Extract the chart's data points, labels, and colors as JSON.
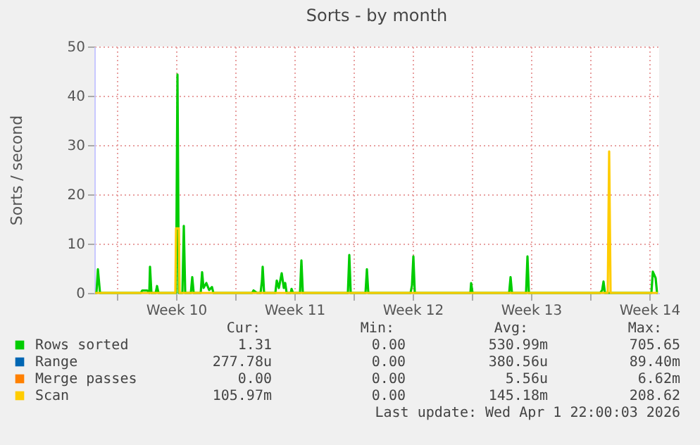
{
  "chart_data": {
    "type": "line",
    "title": "Sorts - by month",
    "ylabel": "Sorts / second",
    "xlim": [
      "2026-02-28T16:00",
      "2026-04-03T02:00"
    ],
    "xticks": [
      {
        "value": "2026-03-02",
        "label": null
      },
      {
        "value": "2026-03-05T12:00",
        "label": "Week 10"
      },
      {
        "value": "2026-03-09",
        "label": null
      },
      {
        "value": "2026-03-12T12:00",
        "label": "Week 11"
      },
      {
        "value": "2026-03-16",
        "label": null
      },
      {
        "value": "2026-03-19T12:00",
        "label": "Week 12"
      },
      {
        "value": "2026-03-23",
        "label": null
      },
      {
        "value": "2026-03-26T12:00",
        "label": "Week 13"
      },
      {
        "value": "2026-03-30",
        "label": null
      },
      {
        "value": "2026-04-02T12:00",
        "label": "Week 14"
      }
    ],
    "ylim": [
      0,
      50
    ],
    "yticks": [
      0,
      10,
      20,
      30,
      40,
      50
    ],
    "grid": true,
    "legend": "bottom",
    "marker": "none",
    "line_style": "solid",
    "series": [
      {
        "name": "Rows sorted",
        "color": "#00cc00",
        "x": [
          "2026-02-28T17:00",
          "2026-02-28T19:00",
          "2026-02-28T21:00",
          "2026-03-01T00:00",
          "2026-03-03T10:00",
          "2026-03-03T12:00",
          "2026-03-03T19:00",
          "2026-03-03T22:00",
          "2026-03-03T23:00",
          "2026-03-04T01:00",
          "2026-03-04T07:00",
          "2026-03-04T09:00",
          "2026-03-04T11:00",
          "2026-03-05T12:00",
          "2026-03-05T14:00",
          "2026-03-05T16:00",
          "2026-03-05T21:00",
          "2026-03-05T23:00",
          "2026-03-06T01:00",
          "2026-03-06T09:00",
          "2026-03-06T11:00",
          "2026-03-06T13:00",
          "2026-03-06T23:00",
          "2026-03-07T01:00",
          "2026-03-07T03:00",
          "2026-03-07T07:00",
          "2026-03-07T11:00",
          "2026-03-07T15:00",
          "2026-03-07T17:00",
          "2026-03-10T00:00",
          "2026-03-10T02:00",
          "2026-03-10T07:00",
          "2026-03-10T12:00",
          "2026-03-10T14:00",
          "2026-03-10T15:00",
          "2026-03-10T17:00",
          "2026-03-11T09:00",
          "2026-03-11T11:00",
          "2026-03-11T14:00",
          "2026-03-11T18:00",
          "2026-03-11T21:00",
          "2026-03-11T23:00",
          "2026-03-12T01:00",
          "2026-03-12T07:00",
          "2026-03-12T08:00",
          "2026-03-12T10:00",
          "2026-03-12T20:00",
          "2026-03-12T22:00",
          "2026-03-13T00:00",
          "2026-03-15T16:00",
          "2026-03-15T18:00",
          "2026-03-15T20:00",
          "2026-03-16T17:00",
          "2026-03-16T19:00",
          "2026-03-16T21:00",
          "2026-03-19T09:00",
          "2026-03-19T11:00",
          "2026-03-19T13:00",
          "2026-03-19T15:00",
          "2026-03-22T22:00",
          "2026-03-22T23:00",
          "2026-03-23T01:00",
          "2026-03-25T05:00",
          "2026-03-25T07:00",
          "2026-03-25T09:00",
          "2026-03-26T05:00",
          "2026-03-26T07:00",
          "2026-03-26T09:00",
          "2026-03-30T14:00",
          "2026-03-30T17:00",
          "2026-03-30T19:00",
          "2026-03-30T21:00",
          "2026-04-02T15:00",
          "2026-04-02T17:00",
          "2026-04-02T21:00",
          "2026-04-02T23:00",
          "2026-04-03T00:00"
        ],
        "values": [
          0,
          0,
          4.8,
          0,
          0,
          0.5,
          0.5,
          0,
          5.3,
          0,
          0,
          1.4,
          0,
          0,
          44.3,
          0,
          0,
          13.6,
          0,
          0,
          3.2,
          0,
          0,
          4.2,
          1.0,
          2.0,
          0.6,
          1.2,
          0,
          0,
          0.5,
          0,
          0,
          2.5,
          5.3,
          0,
          0,
          2.5,
          1.0,
          4.0,
          1.0,
          2.0,
          0,
          0,
          0.8,
          0,
          0,
          6.6,
          0,
          0,
          7.7,
          0,
          0,
          4.8,
          0,
          0,
          1.5,
          7.4,
          0,
          0,
          2.0,
          0,
          0,
          3.2,
          0,
          0,
          7.4,
          0,
          0,
          0.5,
          2.3,
          0,
          0,
          4.3,
          3.0,
          0,
          0
        ]
      },
      {
        "name": "Range",
        "color": "#0066b3"
      },
      {
        "name": "Merge passes",
        "color": "#ff8000"
      },
      {
        "name": "Scan",
        "color": "#ffcc00",
        "x": [
          "2026-02-28T17:00",
          "2026-03-05T11:00",
          "2026-03-05T12:00",
          "2026-03-05T16:00",
          "2026-03-05T17:00",
          "2026-03-31T01:00",
          "2026-03-31T03:00",
          "2026-03-31T05:00",
          "2026-04-03T00:00"
        ],
        "values": [
          0,
          0,
          13.1,
          13.1,
          0,
          0,
          28.7,
          0,
          0
        ]
      }
    ],
    "annotations": [
      "Cur:",
      "Min:",
      "Avg:",
      "Max:",
      "1.31",
      "0.00",
      "530.99m",
      "705.65",
      "277.78u",
      "0.00",
      "380.56u",
      "89.40m",
      "0.00",
      "0.00",
      "5.56u",
      "6.62m",
      "105.97m",
      "0.00",
      "145.18m",
      "208.62",
      "Last update: Wed Apr  1 22:00:03 2026"
    ]
  }
}
